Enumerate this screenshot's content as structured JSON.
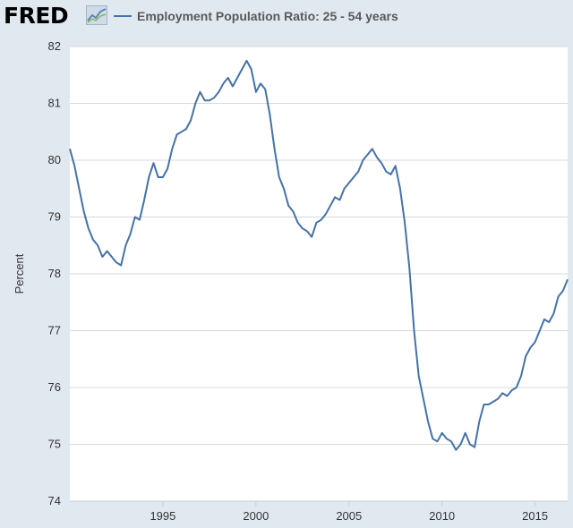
{
  "header": {
    "logo_text": "FRED",
    "series_label": "Employment Population Ratio: 25 - 54 years"
  },
  "colors": {
    "background": "#e1e9f0",
    "plot_background": "#ffffff",
    "series_line": "#4572a7",
    "gridline": "#d8d8d8"
  },
  "chart_data": {
    "type": "line",
    "title": "",
    "xlabel": "",
    "ylabel": "Percent",
    "ylim": [
      74,
      82
    ],
    "xlim": [
      1990.0,
      2016.75
    ],
    "y_ticks": [
      "74",
      "75",
      "76",
      "77",
      "78",
      "79",
      "80",
      "81",
      "82"
    ],
    "x_ticks": [
      "1995",
      "2000",
      "2005",
      "2010",
      "2015"
    ],
    "grid": "horizontal",
    "legend": "top",
    "series": [
      {
        "name": "Employment Population Ratio: 25 - 54 years",
        "x": [
          1990.0,
          1990.25,
          1990.5,
          1990.75,
          1991.0,
          1991.25,
          1991.5,
          1991.75,
          1992.0,
          1992.25,
          1992.5,
          1992.75,
          1993.0,
          1993.25,
          1993.5,
          1993.75,
          1994.0,
          1994.25,
          1994.5,
          1994.75,
          1995.0,
          1995.25,
          1995.5,
          1995.75,
          1996.0,
          1996.25,
          1996.5,
          1996.75,
          1997.0,
          1997.25,
          1997.5,
          1997.75,
          1998.0,
          1998.25,
          1998.5,
          1998.75,
          1999.0,
          1999.25,
          1999.5,
          1999.75,
          2000.0,
          2000.25,
          2000.5,
          2000.75,
          2001.0,
          2001.25,
          2001.5,
          2001.75,
          2002.0,
          2002.25,
          2002.5,
          2002.75,
          2003.0,
          2003.25,
          2003.5,
          2003.75,
          2004.0,
          2004.25,
          2004.5,
          2004.75,
          2005.0,
          2005.25,
          2005.5,
          2005.75,
          2006.0,
          2006.25,
          2006.5,
          2006.75,
          2007.0,
          2007.25,
          2007.5,
          2007.75,
          2008.0,
          2008.25,
          2008.5,
          2008.75,
          2009.0,
          2009.25,
          2009.5,
          2009.75,
          2010.0,
          2010.25,
          2010.5,
          2010.75,
          2011.0,
          2011.25,
          2011.5,
          2011.75,
          2012.0,
          2012.25,
          2012.5,
          2012.75,
          2013.0,
          2013.25,
          2013.5,
          2013.75,
          2014.0,
          2014.25,
          2014.5,
          2014.75,
          2015.0,
          2015.25,
          2015.5,
          2015.75,
          2016.0,
          2016.25,
          2016.5,
          2016.75
        ],
        "values": [
          80.2,
          79.9,
          79.5,
          79.1,
          78.8,
          78.6,
          78.5,
          78.3,
          78.4,
          78.3,
          78.2,
          78.15,
          78.5,
          78.7,
          79.0,
          78.95,
          79.3,
          79.7,
          79.95,
          79.7,
          79.7,
          79.85,
          80.2,
          80.45,
          80.5,
          80.55,
          80.7,
          81.0,
          81.2,
          81.05,
          81.05,
          81.1,
          81.2,
          81.35,
          81.45,
          81.3,
          81.45,
          81.6,
          81.75,
          81.6,
          81.2,
          81.35,
          81.25,
          80.8,
          80.2,
          79.7,
          79.5,
          79.2,
          79.1,
          78.9,
          78.8,
          78.75,
          78.65,
          78.9,
          78.95,
          79.05,
          79.2,
          79.35,
          79.3,
          79.5,
          79.6,
          79.7,
          79.8,
          80.0,
          80.1,
          80.2,
          80.05,
          79.95,
          79.8,
          79.75,
          79.9,
          79.5,
          78.9,
          78.1,
          77.0,
          76.2,
          75.8,
          75.4,
          75.1,
          75.05,
          75.2,
          75.1,
          75.05,
          74.9,
          75.0,
          75.2,
          75.0,
          74.95,
          75.4,
          75.7,
          75.7,
          75.75,
          75.8,
          75.9,
          75.85,
          75.95,
          76.0,
          76.2,
          76.55,
          76.7,
          76.8,
          77.0,
          77.2,
          77.15,
          77.3,
          77.6,
          77.7,
          77.9
        ]
      }
    ]
  }
}
